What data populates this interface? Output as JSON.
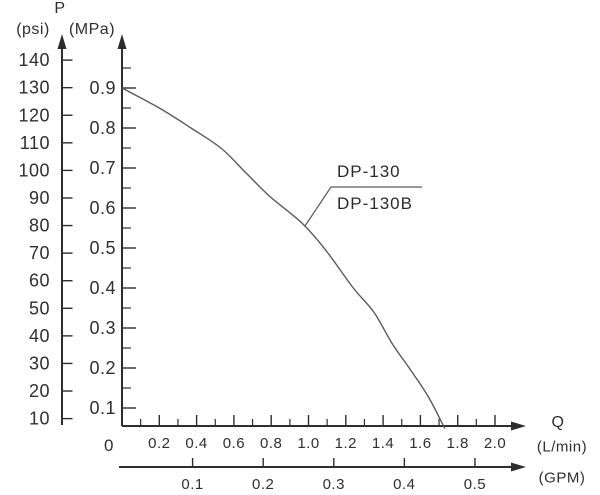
{
  "chart_data": {
    "type": "line",
    "curve": {
      "labels": [
        "DP-130",
        "DP-130B"
      ],
      "x_unit": "L/min",
      "y_unit": "MPa",
      "points_lmin_mpa": [
        [
          0.0,
          0.9
        ],
        [
          0.2,
          0.85
        ],
        [
          0.37,
          0.8
        ],
        [
          0.53,
          0.75
        ],
        [
          0.66,
          0.69
        ],
        [
          0.79,
          0.63
        ],
        [
          0.97,
          0.56
        ],
        [
          1.1,
          0.49
        ],
        [
          1.24,
          0.4
        ],
        [
          1.35,
          0.34
        ],
        [
          1.45,
          0.26
        ],
        [
          1.54,
          0.2
        ],
        [
          1.64,
          0.13
        ],
        [
          1.73,
          0.05
        ]
      ]
    },
    "x_axis": {
      "quantity": "Q",
      "primary_unit": "(L/min)",
      "secondary_unit": "(GPM)",
      "ticks_lmin": [
        "0.2",
        "0.4",
        "0.6",
        "0.8",
        "1.0",
        "1.2",
        "1.4",
        "1.6",
        "1.8",
        "2.0"
      ],
      "minor_tick_step_lmin": 0.1,
      "ticks_gpm": [
        "0.1",
        "0.2",
        "0.3",
        "0.4",
        "0.5"
      ],
      "range_lmin": [
        0,
        2.1
      ],
      "origin_label": "0"
    },
    "y_axis": {
      "quantity": "P",
      "inner_unit": "(MPa)",
      "outer_unit": "(psi)",
      "ticks_mpa": [
        "0.9",
        "0.8",
        "0.7",
        "0.6",
        "0.5",
        "0.4",
        "0.3",
        "0.2",
        "0.1"
      ],
      "minor_tick_step_mpa": 0.05,
      "ticks_psi": [
        "140",
        "130",
        "120",
        "110",
        "100",
        "90",
        "80",
        "70",
        "60",
        "50",
        "40",
        "30",
        "20",
        "10"
      ],
      "range_mpa": [
        0,
        0.95
      ]
    },
    "grid": false,
    "legend_position": "callout-on-curve"
  },
  "colors": {
    "background": "#ffffff",
    "axis": "#2e2e2e",
    "text": "#2f2f2f",
    "curve": "#5a5a5a"
  }
}
